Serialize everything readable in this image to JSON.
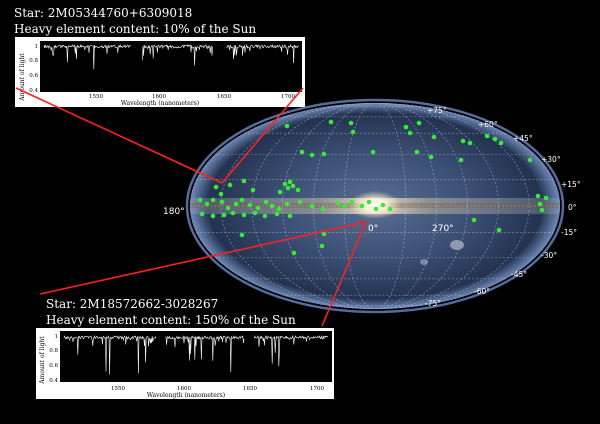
{
  "star1": {
    "name": "Star: 2M05344760+6309018",
    "content": "Heavy element content: 10% of the Sun",
    "ylabel": "Amount of light",
    "yticks": [
      "1",
      "0.8",
      "0.6",
      "0.4"
    ],
    "xticks": [
      "1550",
      "1600",
      "1650",
      "1700"
    ],
    "xlabel": "Wavelength (nanometers)"
  },
  "star2": {
    "name": "Star: 2M18572662-3028267",
    "content": "Heavy element content: 150% of the Sun",
    "ylabel": "Amount of light",
    "yticks": [
      "1",
      "0.8",
      "0.6",
      "0.4"
    ],
    "xticks": [
      "1550",
      "1600",
      "1650",
      "1700"
    ],
    "xlabel": "Wavelength (nanometers)"
  },
  "map": {
    "lat_labels_right": [
      "+75°",
      "+60°",
      "+45°",
      "+30°",
      "+15°",
      "0°",
      "-15°",
      "-30°",
      "-45°",
      "-60°",
      "-75°"
    ],
    "lon_labels": [
      "180°",
      "0°",
      "270°"
    ],
    "colors": {
      "stars": "#33ee33",
      "pointer_lines": "#ff2020",
      "grid": "#c8d8ff"
    }
  }
}
